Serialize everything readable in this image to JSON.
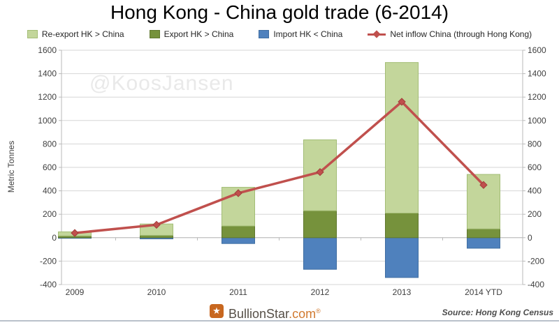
{
  "title": "Hong Kong - China gold trade (6-2014)",
  "watermark": "@KoosJansen",
  "icons": {
    "brand_star": "★"
  },
  "footer": {
    "brand": "BullionStar",
    "tld": ".com",
    "reg": "®",
    "source": "Source: Hong Kong Census"
  },
  "chart_data": {
    "type": "bar",
    "subtype": "stacked-bars-with-line",
    "title": "Hong Kong - China gold trade (6-2014)",
    "xlabel": "",
    "ylabel": "Metric Tonnes",
    "ylim": [
      -400,
      1600
    ],
    "ytick_step": 200,
    "grid": true,
    "legend_position": "top",
    "categories": [
      "2009",
      "2010",
      "2011",
      "2012",
      "2013",
      "2014 YTD"
    ],
    "series": [
      {
        "name": "Re-export HK > China",
        "type": "bar",
        "color": "#c3d69b",
        "border": "#a3bd76",
        "values": [
          35,
          97,
          330,
          605,
          1285,
          465
        ]
      },
      {
        "name": "Export HK > China",
        "type": "bar",
        "color": "#76923c",
        "border": "#60782f",
        "values": [
          15,
          20,
          100,
          230,
          210,
          75
        ]
      },
      {
        "name": "Import HK < China",
        "type": "bar",
        "color": "#4f81bd",
        "border": "#406ea2",
        "values": [
          -5,
          -10,
          -50,
          -270,
          -340,
          -90
        ]
      },
      {
        "name": "Net inflow China (through Hong Kong)",
        "type": "line",
        "color": "#c0504d",
        "marker_border": "#a03c39",
        "marker": "diamond",
        "values": [
          40,
          110,
          380,
          560,
          1160,
          450
        ]
      }
    ]
  }
}
